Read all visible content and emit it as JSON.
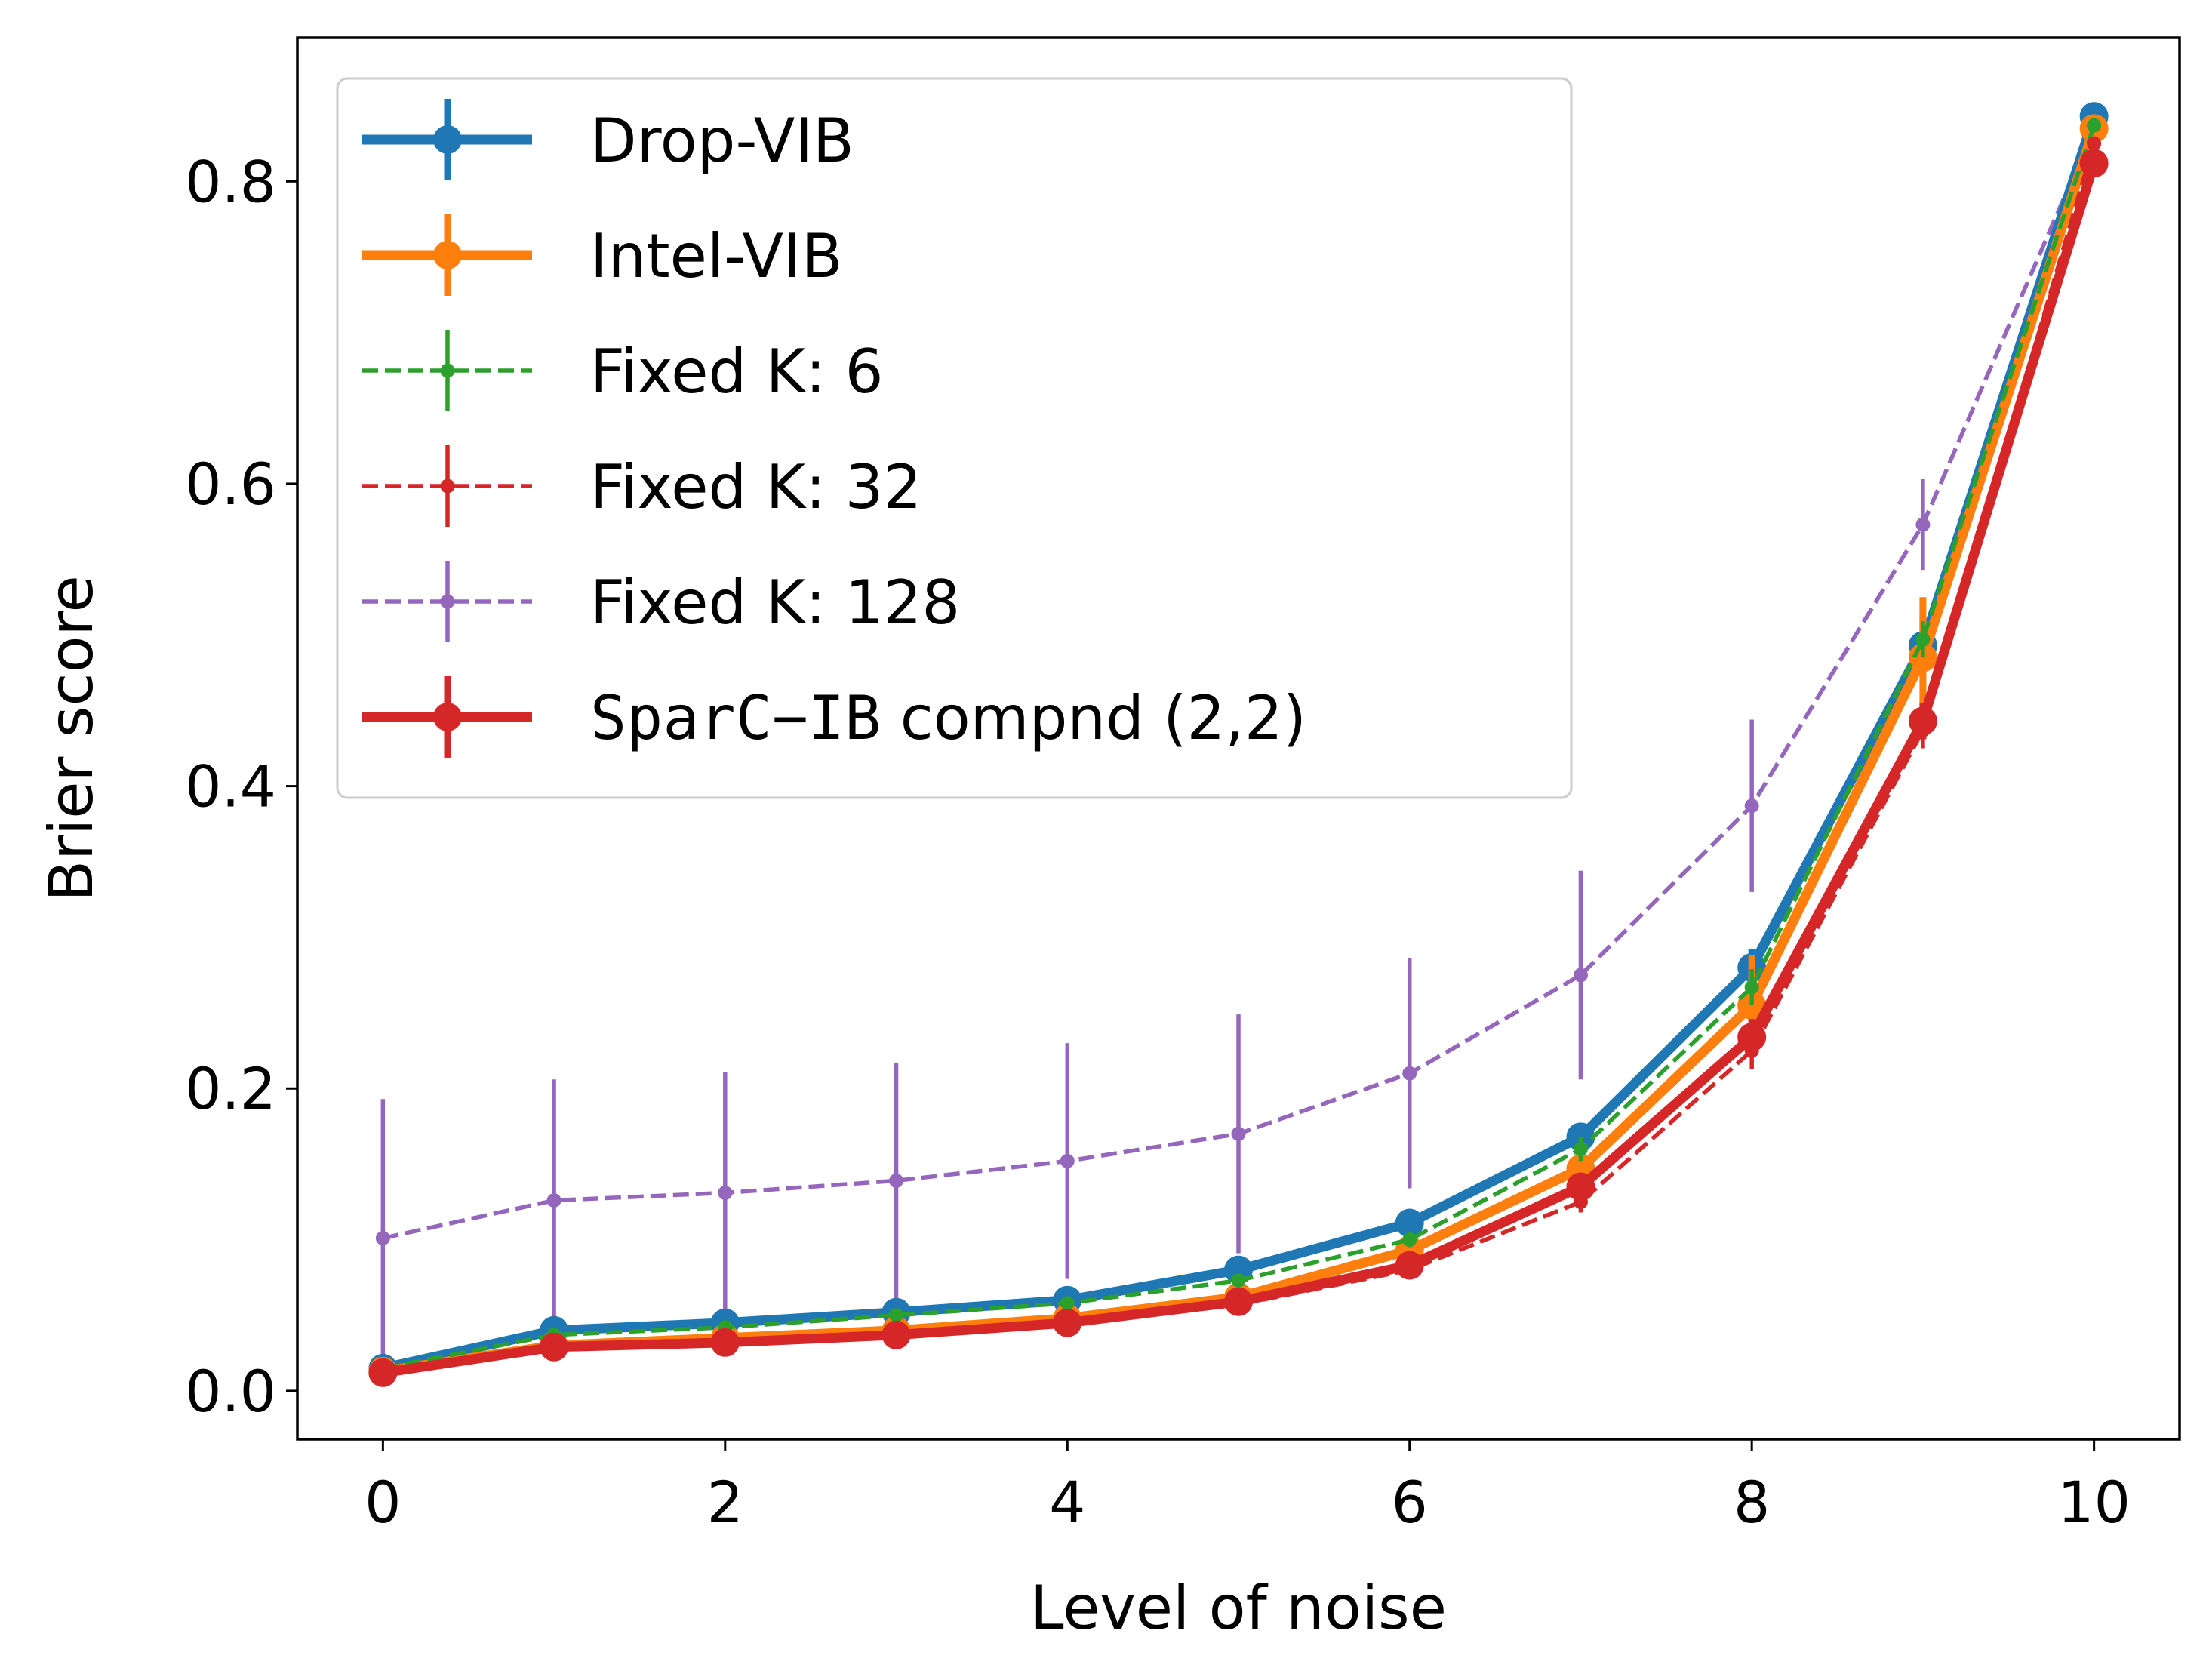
{
  "chart_data": {
    "type": "line",
    "title": "",
    "xlabel": "Level of noise",
    "ylabel": "Brier score",
    "xlim": [
      -0.5,
      10.5
    ],
    "ylim": [
      -0.032,
      0.895
    ],
    "xticks": [
      0,
      2,
      4,
      6,
      8,
      10
    ],
    "xtick_labels": [
      "0",
      "2",
      "4",
      "6",
      "8",
      "10"
    ],
    "yticks": [
      0.0,
      0.2,
      0.4,
      0.6,
      0.8
    ],
    "ytick_labels": [
      "0.0",
      "0.2",
      "0.4",
      "0.6",
      "0.8"
    ],
    "grid": false,
    "legend_position": "top-left",
    "x": [
      0,
      1,
      2,
      3,
      4,
      5,
      6,
      7,
      8,
      9,
      10
    ],
    "series": [
      {
        "name": "Drop-VIB",
        "legend_parts": [
          "Drop-VIB"
        ],
        "color": "#1f77b4",
        "linestyle": "solid",
        "weight": "thick",
        "values": [
          0.015,
          0.04,
          0.045,
          0.052,
          0.06,
          0.08,
          0.111,
          0.168,
          0.28,
          0.493,
          0.843
        ],
        "errors": [
          0.004,
          0.004,
          0.004,
          0.004,
          0.004,
          0.005,
          0.006,
          0.009,
          0.012,
          0.018,
          0.004
        ]
      },
      {
        "name": "Intel-VIB",
        "legend_parts": [
          "Intel-VIB"
        ],
        "color": "#ff7f0e",
        "linestyle": "solid",
        "weight": "thick",
        "values": [
          0.013,
          0.03,
          0.035,
          0.04,
          0.048,
          0.062,
          0.093,
          0.147,
          0.255,
          0.485,
          0.835
        ],
        "errors": [
          0.004,
          0.004,
          0.004,
          0.004,
          0.004,
          0.005,
          0.006,
          0.012,
          0.033,
          0.04,
          0.004
        ]
      },
      {
        "name": "Fixed K: 6",
        "legend_parts": [
          "Fixed K: 6"
        ],
        "color": "#2ca02c",
        "linestyle": "dashed",
        "weight": "thin",
        "values": [
          0.015,
          0.037,
          0.042,
          0.05,
          0.058,
          0.073,
          0.1,
          0.16,
          0.267,
          0.497,
          0.837
        ],
        "errors": [
          0.003,
          0.003,
          0.003,
          0.003,
          0.003,
          0.004,
          0.005,
          0.008,
          0.012,
          0.012,
          0.004
        ]
      },
      {
        "name": "Fixed K: 32",
        "legend_parts": [
          "Fixed K: 32"
        ],
        "color": "#d62728",
        "linestyle": "dashed",
        "weight": "thin",
        "values": [
          0.013,
          0.029,
          0.032,
          0.036,
          0.044,
          0.057,
          0.08,
          0.125,
          0.225,
          0.437,
          0.825
        ],
        "errors": [
          0.003,
          0.003,
          0.003,
          0.003,
          0.003,
          0.004,
          0.005,
          0.007,
          0.012,
          0.012,
          0.004
        ]
      },
      {
        "name": "Fixed K: 128",
        "legend_parts": [
          "Fixed K: 128"
        ],
        "color": "#9467bd",
        "linestyle": "dashed",
        "weight": "thin",
        "values": [
          0.101,
          0.126,
          0.131,
          0.139,
          0.152,
          0.17,
          0.21,
          0.275,
          0.387,
          0.573,
          0.835
        ],
        "errors": [
          0.092,
          0.08,
          0.08,
          0.078,
          0.078,
          0.079,
          0.076,
          0.069,
          0.057,
          0.03,
          0.004
        ]
      },
      {
        "name": "SparC−IB compnd (2,2)",
        "legend_parts": [
          "SparC−IB",
          " compnd (2,2)"
        ],
        "color": "#d62728",
        "linestyle": "solid",
        "weight": "thick",
        "values": [
          0.012,
          0.029,
          0.032,
          0.037,
          0.045,
          0.059,
          0.083,
          0.135,
          0.234,
          0.443,
          0.812
        ],
        "errors": [
          0.003,
          0.003,
          0.003,
          0.003,
          0.003,
          0.004,
          0.005,
          0.008,
          0.012,
          0.012,
          0.004
        ]
      }
    ]
  }
}
